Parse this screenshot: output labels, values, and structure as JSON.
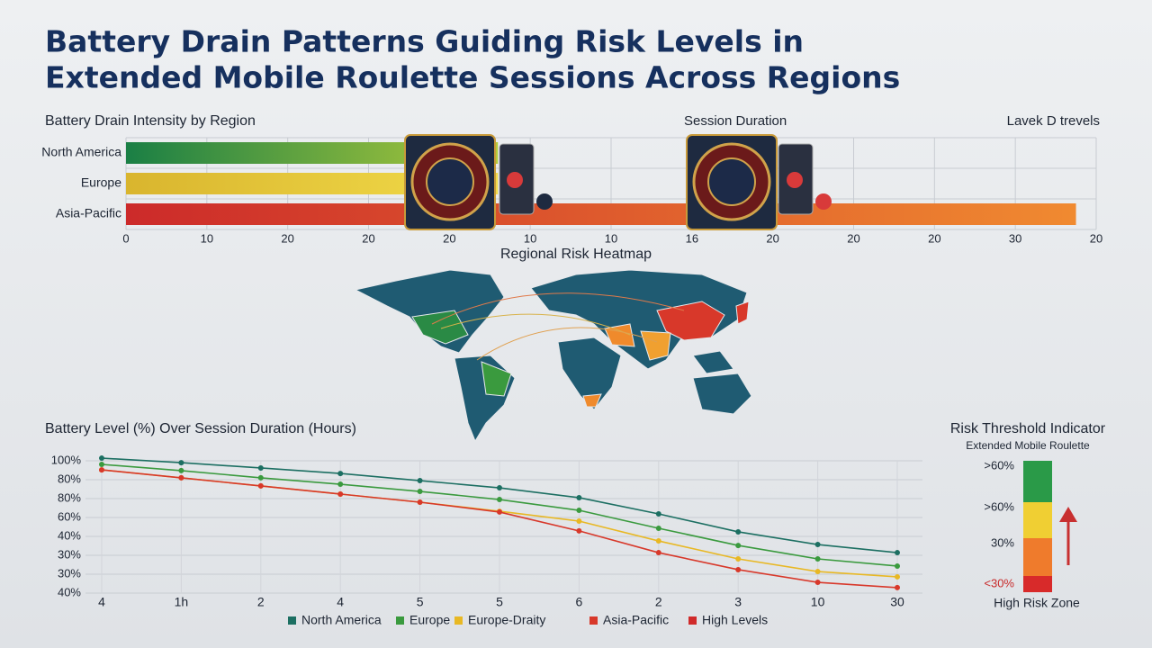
{
  "title_lines": [
    "Battery Drain Patterns Guiding Risk Levels in",
    "Extended Mobile Roulette Sessions Across Regions"
  ],
  "header_labels": [
    "Session Duration",
    "Lavek D trevels"
  ],
  "chart_data": [
    {
      "type": "hbar",
      "title": "Battery Drain Intensity by Region",
      "categories": [
        "North America",
        "Europe",
        "Asia-Pacific"
      ],
      "values": [
        4.6,
        4.6,
        11.75
      ],
      "colors": [
        [
          "#1a7f45",
          "#b3cc3a"
        ],
        [
          "#d9b52e",
          "#f2dc4a"
        ],
        [
          "#cc2a2a",
          "#f08a30"
        ]
      ],
      "xlim": [
        0,
        12
      ],
      "x_labels": [
        "0",
        "10",
        "20",
        "20",
        "20",
        "10",
        "10",
        "16",
        "20",
        "20",
        "20",
        "30",
        "20"
      ],
      "grid": true
    },
    {
      "type": "line",
      "title": "Battery Level (%) Over Session Duration (Hours)",
      "categories": [
        "4",
        "1h",
        "2",
        "4",
        "5",
        "5",
        "6",
        "2",
        "3",
        "10",
        "30"
      ],
      "y_labels": [
        "100%",
        "80%",
        "80%",
        "60%",
        "40%",
        "30%",
        "30%",
        "40%"
      ],
      "ylim": [
        0,
        7
      ],
      "series": [
        {
          "name": "North America",
          "color": "#1c6f62",
          "values": [
            7.14,
            6.9,
            6.62,
            6.33,
            5.95,
            5.57,
            5.05,
            4.19,
            3.24,
            2.57,
            2.14
          ]
        },
        {
          "name": "Europe",
          "color": "#3a9a3e",
          "values": [
            6.81,
            6.48,
            6.1,
            5.76,
            5.38,
            4.95,
            4.38,
            3.43,
            2.52,
            1.81,
            1.43
          ]
        },
        {
          "name": "Europe-Draity",
          "color": "#e8b824",
          "values": [
            6.52,
            6.1,
            5.67,
            5.24,
            4.81,
            4.33,
            3.81,
            2.76,
            1.81,
            1.14,
            0.86
          ]
        },
        {
          "name": "Asia-Pacific",
          "color": "#d8382a",
          "values": [
            6.52,
            6.1,
            5.67,
            5.24,
            4.81,
            4.29,
            3.29,
            2.14,
            1.24,
            0.57,
            0.29
          ]
        }
      ],
      "extra_legend": [
        {
          "name": "High Levels",
          "color": "#d02a2a"
        }
      ],
      "grid": true
    }
  ],
  "map": {
    "title": "Regional Risk Heatmap"
  },
  "risk_indicator": {
    "title": "Risk Threshold Indicator",
    "subtitle": "Extended Mobile Roulette",
    "levels": [
      {
        "label": ">60%",
        "color": "#2a9a48"
      },
      {
        "label": ">60%",
        "color": "#f0cf33"
      },
      {
        "label": "30%",
        "color": "#ef7b2c"
      },
      {
        "label": "<30%",
        "color": "#d82a2a"
      }
    ],
    "footer": "High Risk Zone"
  }
}
